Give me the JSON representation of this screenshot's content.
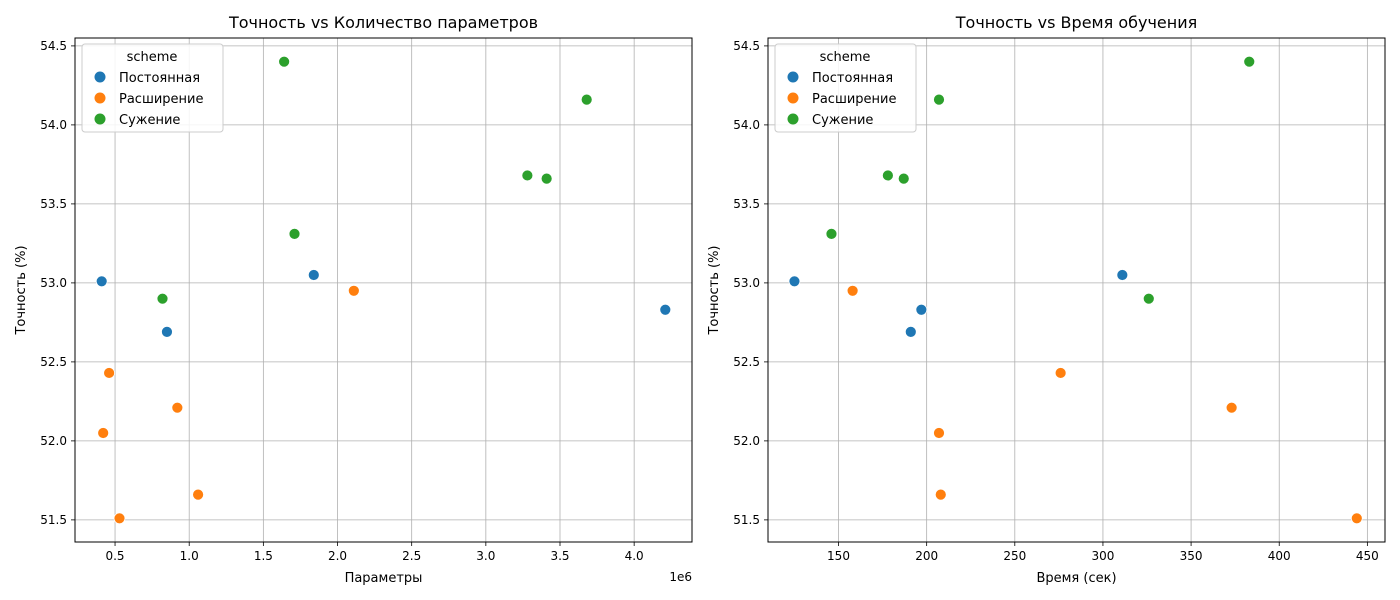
{
  "chart_data": [
    {
      "type": "scatter",
      "title": "Точность vs Количество параметров",
      "xlabel": "Параметры",
      "ylabel": "Точность (%)",
      "x_offset_label": "1e6",
      "xlim": [
        230000,
        4390000
      ],
      "ylim": [
        51.36,
        54.55
      ],
      "x_ticks": [
        500000,
        1000000,
        1500000,
        2000000,
        2500000,
        3000000,
        3500000,
        4000000
      ],
      "x_tick_labels": [
        "0.5",
        "1.0",
        "1.5",
        "2.0",
        "2.5",
        "3.0",
        "3.5",
        "4.0"
      ],
      "y_ticks": [
        51.5,
        52.0,
        52.5,
        53.0,
        53.5,
        54.0,
        54.5
      ],
      "y_tick_labels": [
        "51.5",
        "52.0",
        "52.5",
        "53.0",
        "53.5",
        "54.0",
        "54.5"
      ],
      "grid": true,
      "legend": {
        "title": "scheme",
        "placement": "top-left"
      },
      "series": [
        {
          "name": "Постоянная",
          "color": "#1f77b4",
          "points": [
            [
              410000,
              53.01
            ],
            [
              850000,
              52.69
            ],
            [
              1840000,
              53.05
            ],
            [
              4210000,
              52.83
            ]
          ]
        },
        {
          "name": "Расширение",
          "color": "#ff7f0e",
          "points": [
            [
              420000,
              52.05
            ],
            [
              460000,
              52.43
            ],
            [
              530000,
              51.51
            ],
            [
              920000,
              52.21
            ],
            [
              1060000,
              51.66
            ],
            [
              2110000,
              52.95
            ]
          ]
        },
        {
          "name": "Сужение",
          "color": "#2ca02c",
          "points": [
            [
              820000,
              52.9
            ],
            [
              1640000,
              54.4
            ],
            [
              1710000,
              53.31
            ],
            [
              3280000,
              53.68
            ],
            [
              3410000,
              53.66
            ],
            [
              3680000,
              54.16
            ]
          ]
        }
      ]
    },
    {
      "type": "scatter",
      "title": "Точность vs Время обучения",
      "xlabel": "Время (сек)",
      "ylabel": "Точность (%)",
      "xlim": [
        110,
        460
      ],
      "ylim": [
        51.36,
        54.55
      ],
      "x_ticks": [
        150,
        200,
        250,
        300,
        350,
        400,
        450
      ],
      "x_tick_labels": [
        "150",
        "200",
        "250",
        "300",
        "350",
        "400",
        "450"
      ],
      "y_ticks": [
        51.5,
        52.0,
        52.5,
        53.0,
        53.5,
        54.0,
        54.5
      ],
      "y_tick_labels": [
        "51.5",
        "52.0",
        "52.5",
        "53.0",
        "53.5",
        "54.0",
        "54.5"
      ],
      "grid": true,
      "legend": {
        "title": "scheme",
        "placement": "top-left"
      },
      "series": [
        {
          "name": "Постоянная",
          "color": "#1f77b4",
          "points": [
            [
              125,
              53.01
            ],
            [
              191,
              52.69
            ],
            [
              197,
              52.83
            ],
            [
              311,
              53.05
            ]
          ]
        },
        {
          "name": "Расширение",
          "color": "#ff7f0e",
          "points": [
            [
              158,
              52.95
            ],
            [
              207,
              52.05
            ],
            [
              208,
              51.66
            ],
            [
              276,
              52.43
            ],
            [
              373,
              52.21
            ],
            [
              444,
              51.51
            ]
          ]
        },
        {
          "name": "Сужение",
          "color": "#2ca02c",
          "points": [
            [
              146,
              53.31
            ],
            [
              178,
              53.68
            ],
            [
              187,
              53.66
            ],
            [
              207,
              54.16
            ],
            [
              326,
              52.9
            ],
            [
              383,
              54.4
            ]
          ]
        }
      ]
    }
  ]
}
